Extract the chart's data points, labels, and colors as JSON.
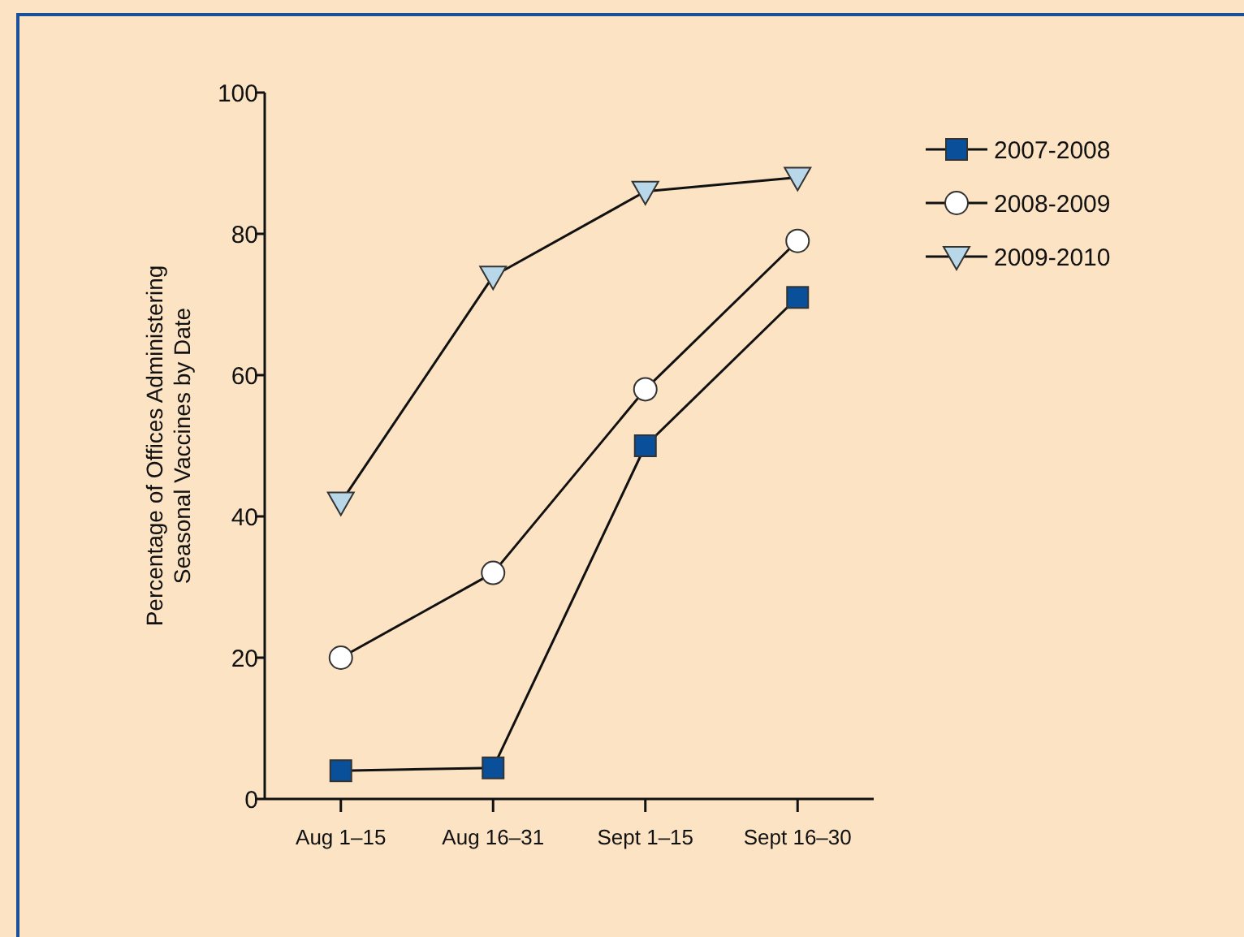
{
  "chart_data": {
    "type": "line",
    "ylabel": "Percentage of Offices Administering\nSeasonal Vaccines by Date",
    "categories": [
      "Aug 1–15",
      "Aug 16–31",
      "Sept 1–15",
      "Sept 16–30"
    ],
    "ylim": [
      0,
      100
    ],
    "yticks": [
      0,
      20,
      40,
      60,
      80,
      100
    ],
    "grid": false,
    "legend": "top right",
    "line_style": "solid",
    "series": [
      {
        "name": "2007-2008",
        "color": "#0a4f9a",
        "marker": "square",
        "values": [
          4,
          4.4,
          50,
          71
        ]
      },
      {
        "name": "2008-2009",
        "color": "#ffffff",
        "marker": "circle",
        "values": [
          20,
          32,
          58,
          79
        ]
      },
      {
        "name": "2009-2010",
        "color": "#b8d8ea",
        "marker": "triangle",
        "values": [
          42,
          74,
          86,
          88
        ]
      }
    ]
  }
}
